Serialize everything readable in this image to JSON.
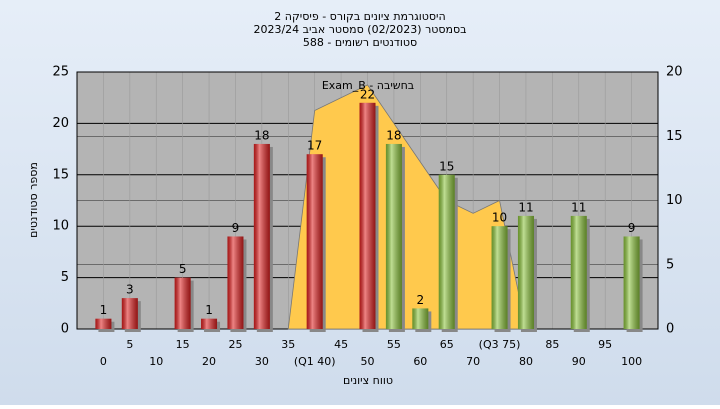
{
  "chart_data": {
    "type": "bar",
    "title": [
      "היסטוגרמת ציונים בקורס - פיסיקה 2",
      "בסמסטר  (02/2023)  סמסטר אביב 2023/24",
      "סטודנטים רשומים - 588"
    ],
    "ylabel": "מספר סטודנטים",
    "xlabel": "טווח ציונים",
    "annotation": "Exam_B - בחשיבה",
    "x": [
      0,
      5,
      15,
      20,
      25,
      30,
      40,
      50,
      55,
      60,
      65,
      75,
      80,
      90,
      100
    ],
    "values": [
      1,
      3,
      5,
      1,
      9,
      18,
      17,
      22,
      18,
      2,
      15,
      10,
      11,
      11,
      9
    ],
    "colors": [
      "#e02020",
      "#e02020",
      "#e02020",
      "#e02020",
      "#e02020",
      "#e02020",
      "#e02020",
      "#e02020",
      "#8cc43c",
      "#8cc43c",
      "#8cc43c",
      "#8cc43c",
      "#8cc43c",
      "#8cc43c",
      "#8cc43c"
    ],
    "area": {
      "x": [
        35,
        40,
        50,
        65,
        70,
        75,
        80
      ],
      "values": [
        0,
        17,
        19,
        10,
        9,
        10,
        0
      ],
      "axis": "y2",
      "color": "#ffc94d"
    },
    "xlim": [
      -5,
      105
    ],
    "xticks": [
      0,
      5,
      10,
      15,
      20,
      25,
      30,
      35,
      {
        "value": 40,
        "label": "(Q1 40)"
      },
      45,
      50,
      55,
      60,
      65,
      70,
      {
        "value": 75,
        "label": "(Q3 75)"
      },
      80,
      85,
      90,
      95,
      100
    ],
    "ylim": [
      0,
      25
    ],
    "yticks": [
      0,
      5,
      10,
      15,
      20,
      25
    ],
    "y2lim": [
      0,
      20
    ],
    "y2ticks": [
      0,
      5,
      10,
      15,
      20
    ],
    "grid": true
  }
}
